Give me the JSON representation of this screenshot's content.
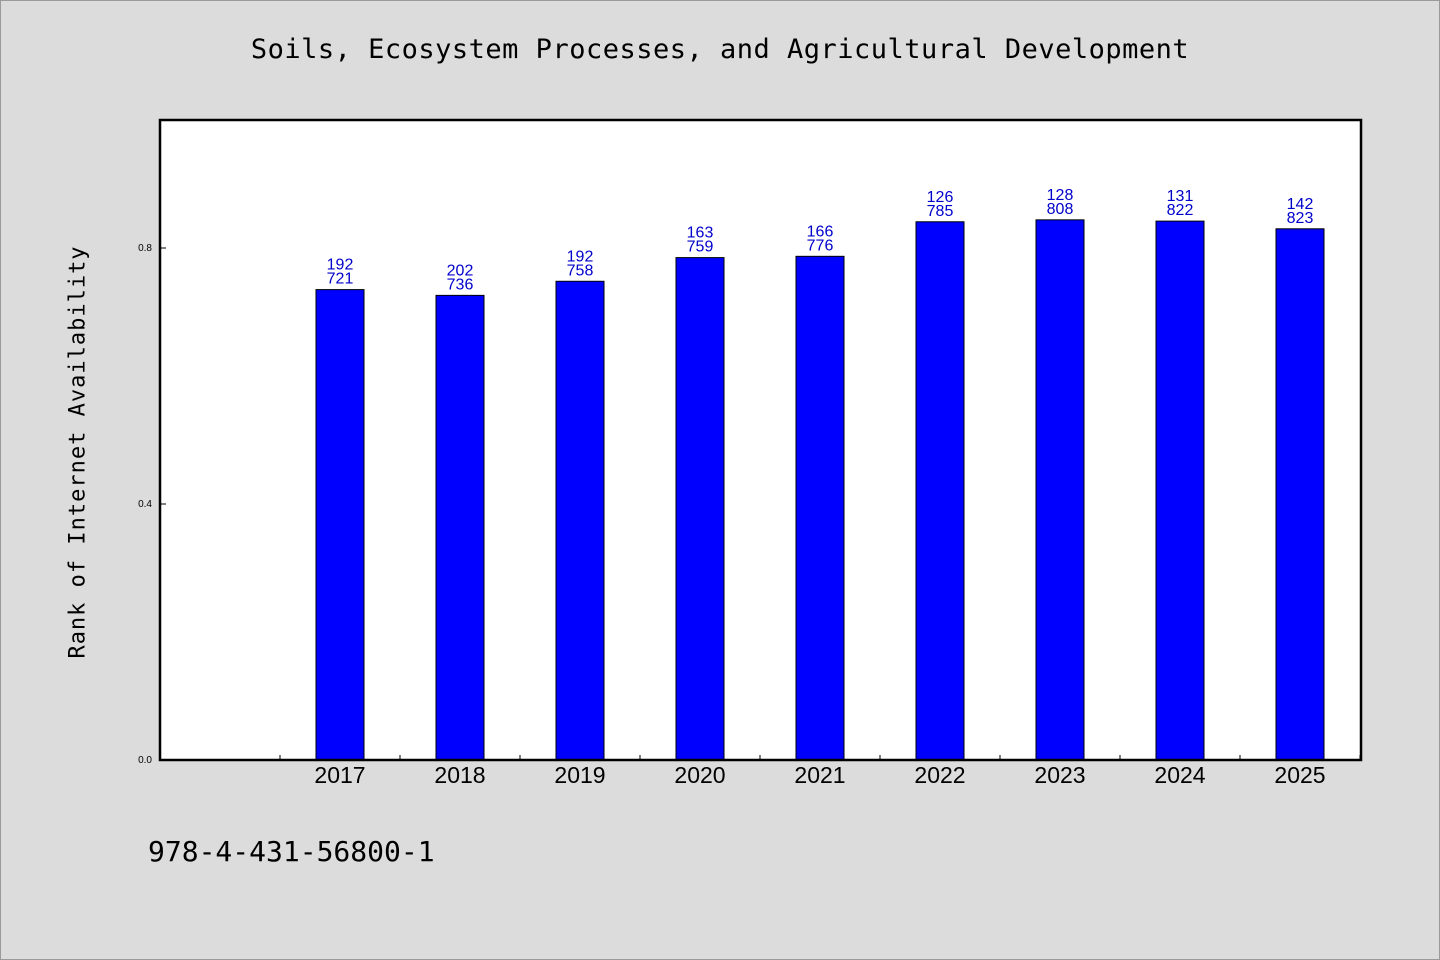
{
  "chart_data": {
    "type": "bar",
    "title": "Soils, Ecosystem Processes, and Agricultural Development",
    "ylabel": "Rank of Internet Availability",
    "xlabel": "",
    "categories": [
      "2017",
      "2018",
      "2019",
      "2020",
      "2021",
      "2022",
      "2023",
      "2024",
      "2025"
    ],
    "values": [
      0.735,
      0.726,
      0.748,
      0.785,
      0.787,
      0.841,
      0.844,
      0.842,
      0.83
    ],
    "data_labels": [
      [
        "192",
        "721"
      ],
      [
        "202",
        "736"
      ],
      [
        "192",
        "758"
      ],
      [
        "163",
        "759"
      ],
      [
        "166",
        "776"
      ],
      [
        "126",
        "785"
      ],
      [
        "128",
        "808"
      ],
      [
        "131",
        "822"
      ],
      [
        "142",
        "823"
      ]
    ],
    "ylim": [
      0.0,
      1.0
    ],
    "yticks": [
      0.0,
      0.4,
      0.8
    ],
    "ytick_labels": [
      "0.0",
      "0.4",
      "0.8"
    ],
    "grid": false,
    "legend": "none",
    "bar_color": "#0000ff",
    "label_color": "#0000cc"
  },
  "footer": {
    "isbn": "978-4-431-56800-1"
  }
}
